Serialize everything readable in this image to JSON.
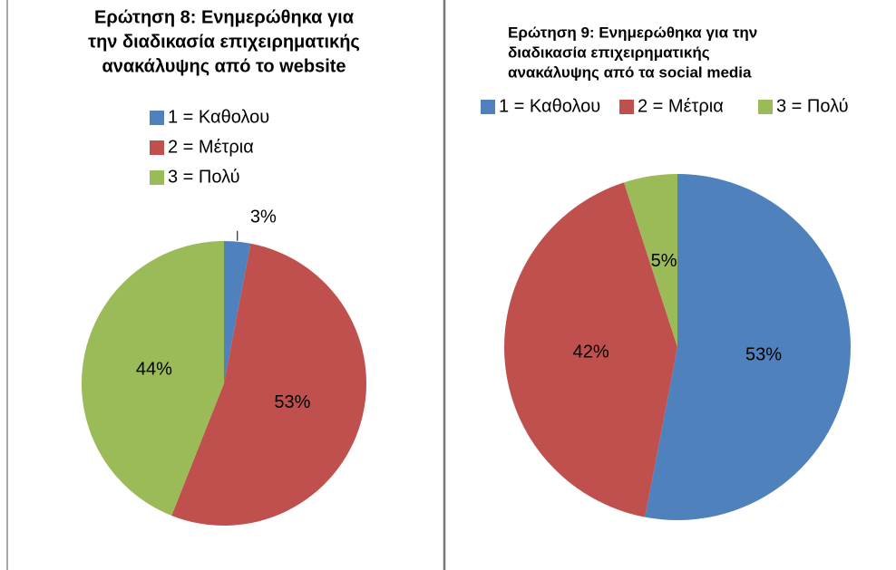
{
  "chart_data": [
    {
      "type": "pie",
      "title": [
        "Ερώτηση 8: Ενημερώθηκα για",
        "την διαδικασία επιχειρηματικής",
        "ανακάλυψης από το website"
      ],
      "categories": [
        "1 = Καθολου",
        "2 = Μέτρια",
        "3 = Πολύ"
      ],
      "colors": [
        "#4f81bd",
        "#c0504d",
        "#9bbb59"
      ],
      "values": [
        3,
        53,
        44
      ],
      "value_labels": [
        "3%",
        "53%",
        "44%"
      ],
      "legend": "vertical"
    },
    {
      "type": "pie",
      "title": [
        "Ερώτηση 9: Ενημερώθηκα για την",
        "διαδικασία επιχειρηματικής",
        "ανακάλυψης από τα social media"
      ],
      "categories": [
        "1 = Καθολου",
        "2 = Μέτρια",
        "3 = Πολύ"
      ],
      "colors": [
        "#4f81bd",
        "#c0504d",
        "#9bbb59"
      ],
      "values": [
        53,
        42,
        5
      ],
      "value_labels": [
        "53%",
        "42%",
        "5%"
      ],
      "legend": "horizontal"
    }
  ]
}
